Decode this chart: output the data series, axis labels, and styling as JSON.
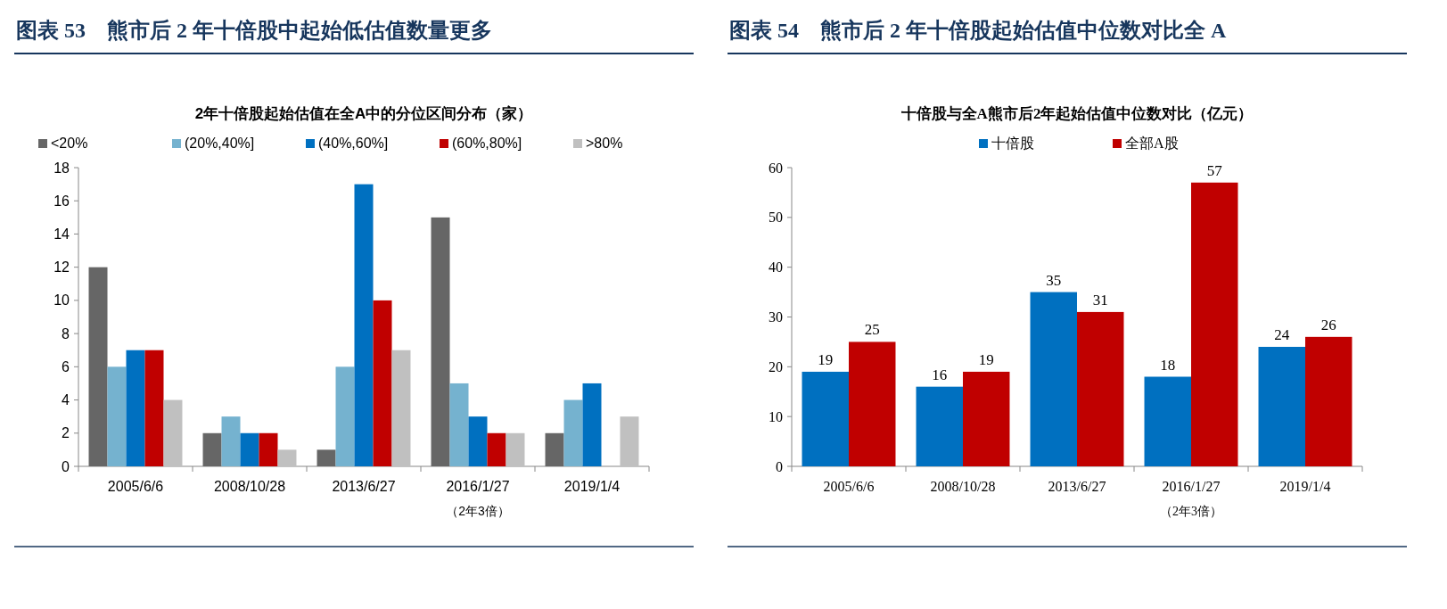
{
  "chart_data": [
    {
      "type": "bar",
      "title": "图表 53　熊市后 2 年十倍股中起始低估值数量更多",
      "subtitle": "2年十倍股起始估值在全A中的分位区间分布（家）",
      "categories": [
        "2005/6/6",
        "2008/10/28",
        "2013/6/27",
        "2016/1/27",
        "2019/1/4"
      ],
      "series": [
        {
          "name": "<20%",
          "color": "#666666",
          "values": [
            12,
            2,
            1,
            15,
            2
          ]
        },
        {
          "name": "(20%,40%]",
          "color": "#75b2cf",
          "values": [
            6,
            3,
            6,
            5,
            4
          ]
        },
        {
          "name": "(40%,60%]",
          "color": "#0070c0",
          "values": [
            7,
            2,
            17,
            3,
            5
          ]
        },
        {
          "name": "(60%,80%]",
          "color": "#c00000",
          "values": [
            7,
            2,
            10,
            2,
            null
          ]
        },
        {
          "name": ">80%",
          "color": "#c0c0c0",
          "values": [
            4,
            1,
            7,
            2,
            3
          ]
        }
      ],
      "ylim": [
        0,
        18
      ],
      "yticks": [
        0,
        2,
        4,
        6,
        8,
        10,
        12,
        14,
        16,
        18
      ],
      "legend": "top",
      "annotations": [
        "（2年3倍）"
      ]
    },
    {
      "type": "bar",
      "title": "图表 54　熊市后 2 年十倍股起始估值中位数对比全 A",
      "subtitle": "十倍股与全A熊市后2年起始估值中位数对比（亿元）",
      "categories": [
        "2005/6/6",
        "2008/10/28",
        "2013/6/27",
        "2016/1/27",
        "2019/1/4"
      ],
      "series": [
        {
          "name": "十倍股",
          "color": "#0070c0",
          "values": [
            19,
            16,
            35,
            18,
            24
          ]
        },
        {
          "name": "全部A股",
          "color": "#c00000",
          "values": [
            25,
            19,
            31,
            57,
            26
          ]
        }
      ],
      "ylim": [
        0,
        60
      ],
      "yticks": [
        0,
        10,
        20,
        30,
        40,
        50,
        60
      ],
      "legend": "top",
      "data_labels": true,
      "annotations": [
        "（2年3倍）"
      ]
    }
  ]
}
